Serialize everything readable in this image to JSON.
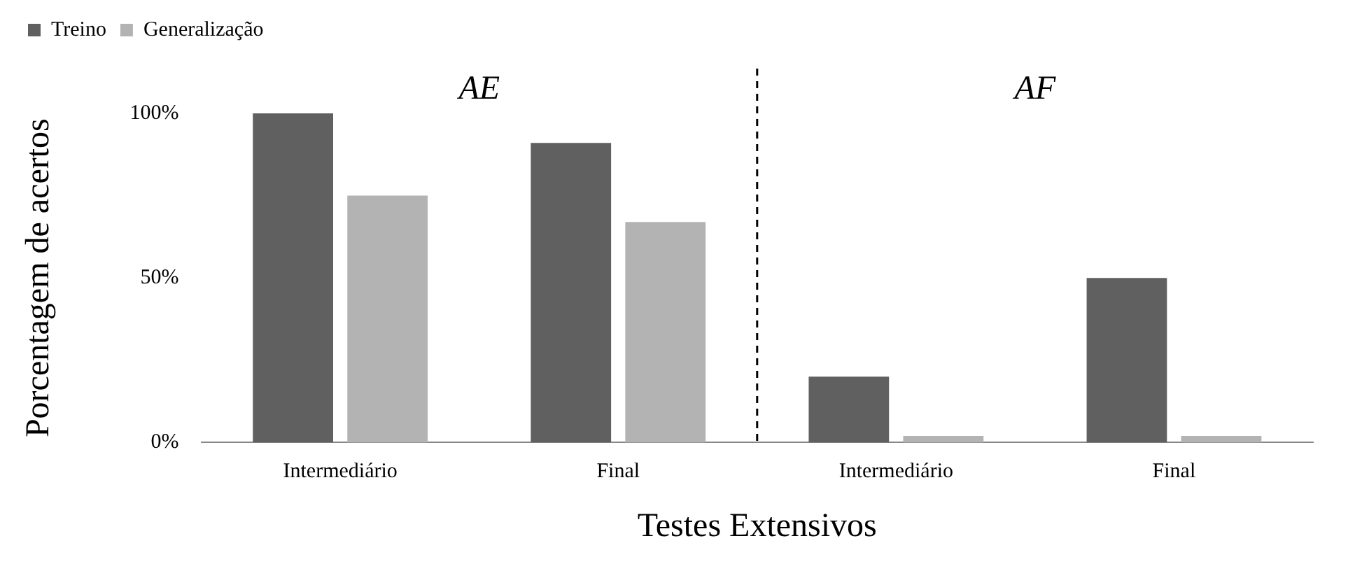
{
  "chart_data": {
    "type": "bar",
    "xlabel": "Testes Extensivos",
    "ylabel": "Porcentagem de acertos",
    "categories": [
      "Intermediário",
      "Final",
      "Intermediário",
      "Final"
    ],
    "series": [
      {
        "name": "Treino",
        "color": "#606060",
        "values": [
          100,
          91,
          20,
          50
        ]
      },
      {
        "name": "Generalização",
        "color": "#b3b3b3",
        "values": [
          75,
          67,
          2,
          2
        ]
      }
    ],
    "ylim": [
      0,
      100
    ],
    "yticks": [
      {
        "value": 0,
        "label": "0%"
      },
      {
        "value": 50,
        "label": "50%"
      },
      {
        "value": 100,
        "label": "100%"
      }
    ],
    "grid": false,
    "legend": "top left",
    "annotations": [
      "AE",
      "AF"
    ]
  }
}
